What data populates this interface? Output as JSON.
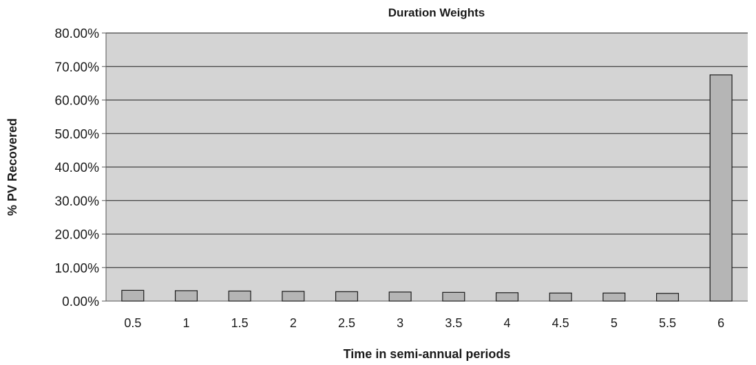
{
  "chart_data": {
    "type": "bar",
    "title": "Duration Weights",
    "xlabel": "Time in semi-annual periods",
    "ylabel": "% PV Recovered",
    "categories": [
      "0.5",
      "1",
      "1.5",
      "2",
      "2.5",
      "3",
      "3.5",
      "4",
      "4.5",
      "5",
      "5.5",
      "6"
    ],
    "values": [
      3.2,
      3.1,
      3.0,
      2.9,
      2.8,
      2.7,
      2.6,
      2.5,
      2.4,
      2.4,
      2.3,
      67.5
    ],
    "ylim": [
      0,
      80
    ],
    "y_ticks": [
      "0.00%",
      "10.00%",
      "20.00%",
      "30.00%",
      "40.00%",
      "50.00%",
      "60.00%",
      "70.00%",
      "80.00%"
    ],
    "grid": true,
    "legend": "none",
    "colors": {
      "plot_background": "#d4d4d4",
      "bar_fill": "#b5b5b5",
      "bar_stroke": "#1a1a1a",
      "gridline": "#1a1a1a",
      "axis": "#555555"
    }
  }
}
